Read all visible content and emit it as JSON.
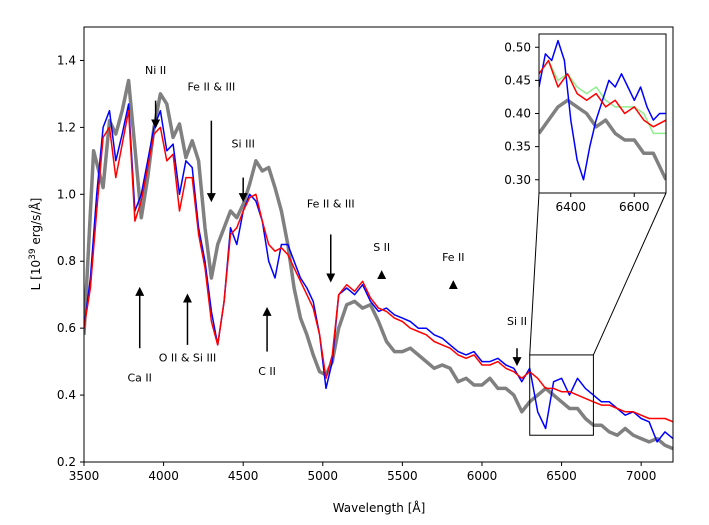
{
  "chart_data": {
    "type": "line",
    "xlabel": "Wavelength [Å]",
    "ylabel_prefix": "L [10",
    "ylabel_exp": "39",
    "ylabel_suffix": " erg/s/Å]",
    "xlim": [
      3500,
      7200
    ],
    "ylim": [
      0.2,
      1.5
    ],
    "xticks": [
      3500,
      4000,
      4500,
      5000,
      5500,
      6000,
      6500,
      7000
    ],
    "yticks": [
      0.2,
      0.4,
      0.6,
      0.8,
      1.0,
      1.2,
      1.4
    ],
    "xtick_labels": [
      "3500",
      "4000",
      "4500",
      "5000",
      "5500",
      "6000",
      "6500",
      "7000"
    ],
    "ytick_labels": [
      "0.2",
      "0.4",
      "0.6",
      "0.8",
      "1.0",
      "1.2",
      "1.4"
    ],
    "colors": {
      "gray": "#808080",
      "blue": "#0000ff",
      "red": "#ff0000",
      "green": "#90ee90"
    },
    "series": [
      {
        "name": "gray",
        "color": "#808080",
        "x": [
          3500,
          3560,
          3620,
          3660,
          3700,
          3740,
          3780,
          3820,
          3860,
          3900,
          3940,
          3980,
          4020,
          4060,
          4100,
          4140,
          4180,
          4220,
          4260,
          4300,
          4340,
          4380,
          4420,
          4460,
          4500,
          4540,
          4580,
          4620,
          4660,
          4700,
          4740,
          4780,
          4820,
          4860,
          4900,
          4940,
          4980,
          5020,
          5060,
          5100,
          5150,
          5200,
          5250,
          5300,
          5350,
          5400,
          5450,
          5500,
          5550,
          5600,
          5650,
          5700,
          5750,
          5800,
          5850,
          5900,
          5950,
          6000,
          6050,
          6100,
          6150,
          6200,
          6250,
          6300,
          6350,
          6400,
          6450,
          6500,
          6550,
          6600,
          6650,
          6700,
          6750,
          6800,
          6850,
          6900,
          6950,
          7000,
          7050,
          7100,
          7150,
          7200
        ],
        "y": [
          0.58,
          1.13,
          1.02,
          1.22,
          1.18,
          1.25,
          1.34,
          1.14,
          0.93,
          1.05,
          1.2,
          1.3,
          1.27,
          1.17,
          1.21,
          1.11,
          1.16,
          1.1,
          0.9,
          0.75,
          0.85,
          0.9,
          0.95,
          0.93,
          0.97,
          1.03,
          1.1,
          1.07,
          1.08,
          1.02,
          0.95,
          0.85,
          0.72,
          0.63,
          0.58,
          0.52,
          0.47,
          0.46,
          0.5,
          0.6,
          0.67,
          0.68,
          0.66,
          0.67,
          0.62,
          0.56,
          0.53,
          0.53,
          0.54,
          0.52,
          0.5,
          0.48,
          0.49,
          0.48,
          0.44,
          0.45,
          0.43,
          0.43,
          0.45,
          0.42,
          0.42,
          0.4,
          0.35,
          0.38,
          0.4,
          0.42,
          0.4,
          0.38,
          0.36,
          0.36,
          0.33,
          0.31,
          0.31,
          0.29,
          0.28,
          0.3,
          0.28,
          0.27,
          0.26,
          0.27,
          0.25,
          0.24
        ]
      },
      {
        "name": "blue",
        "color": "#0000ff",
        "x": [
          3500,
          3540,
          3580,
          3620,
          3660,
          3700,
          3740,
          3780,
          3820,
          3860,
          3900,
          3940,
          3980,
          4020,
          4060,
          4100,
          4140,
          4180,
          4220,
          4260,
          4300,
          4340,
          4380,
          4420,
          4460,
          4500,
          4540,
          4580,
          4620,
          4660,
          4700,
          4740,
          4780,
          4820,
          4860,
          4900,
          4940,
          4980,
          5020,
          5060,
          5100,
          5150,
          5200,
          5250,
          5300,
          5350,
          5400,
          5450,
          5500,
          5550,
          5600,
          5650,
          5700,
          5750,
          5800,
          5850,
          5900,
          5950,
          6000,
          6050,
          6100,
          6150,
          6200,
          6250,
          6300,
          6350,
          6400,
          6450,
          6500,
          6550,
          6600,
          6650,
          6700,
          6750,
          6800,
          6850,
          6900,
          6950,
          7000,
          7050,
          7100,
          7150,
          7200
        ],
        "y": [
          0.6,
          0.75,
          1.0,
          1.2,
          1.25,
          1.1,
          1.18,
          1.27,
          0.95,
          1.0,
          1.1,
          1.2,
          1.25,
          1.13,
          1.15,
          1.0,
          1.1,
          1.08,
          0.9,
          0.8,
          0.65,
          0.55,
          0.68,
          0.9,
          0.85,
          0.95,
          1.0,
          0.98,
          0.92,
          0.8,
          0.75,
          0.85,
          0.85,
          0.8,
          0.75,
          0.72,
          0.68,
          0.58,
          0.42,
          0.5,
          0.7,
          0.72,
          0.7,
          0.73,
          0.68,
          0.65,
          0.66,
          0.64,
          0.63,
          0.62,
          0.6,
          0.6,
          0.58,
          0.57,
          0.55,
          0.53,
          0.52,
          0.53,
          0.5,
          0.5,
          0.51,
          0.49,
          0.48,
          0.44,
          0.48,
          0.35,
          0.3,
          0.44,
          0.45,
          0.4,
          0.45,
          0.42,
          0.4,
          0.38,
          0.38,
          0.36,
          0.34,
          0.35,
          0.33,
          0.32,
          0.26,
          0.29,
          0.27
        ]
      },
      {
        "name": "red",
        "color": "#ff0000",
        "x": [
          3500,
          3540,
          3580,
          3620,
          3660,
          3700,
          3740,
          3780,
          3820,
          3860,
          3900,
          3940,
          3980,
          4020,
          4060,
          4100,
          4140,
          4180,
          4220,
          4260,
          4300,
          4340,
          4380,
          4420,
          4460,
          4500,
          4540,
          4580,
          4620,
          4660,
          4700,
          4740,
          4780,
          4820,
          4860,
          4900,
          4940,
          4980,
          5020,
          5060,
          5100,
          5150,
          5200,
          5250,
          5300,
          5350,
          5400,
          5450,
          5500,
          5550,
          5600,
          5650,
          5700,
          5750,
          5800,
          5850,
          5900,
          5950,
          6000,
          6050,
          6100,
          6150,
          6200,
          6250,
          6300,
          6350,
          6400,
          6450,
          6500,
          6550,
          6600,
          6650,
          6700,
          6750,
          6800,
          6850,
          6900,
          6950,
          7000,
          7050,
          7100,
          7150,
          7200
        ],
        "y": [
          0.6,
          0.72,
          0.95,
          1.17,
          1.2,
          1.05,
          1.15,
          1.25,
          0.92,
          0.98,
          1.08,
          1.18,
          1.2,
          1.1,
          1.12,
          0.95,
          1.05,
          1.05,
          0.88,
          0.78,
          0.62,
          0.55,
          0.68,
          0.88,
          0.9,
          0.95,
          0.99,
          1.0,
          0.92,
          0.85,
          0.83,
          0.84,
          0.82,
          0.78,
          0.74,
          0.7,
          0.66,
          0.58,
          0.45,
          0.52,
          0.7,
          0.73,
          0.71,
          0.74,
          0.69,
          0.66,
          0.65,
          0.63,
          0.62,
          0.6,
          0.59,
          0.58,
          0.56,
          0.55,
          0.54,
          0.52,
          0.51,
          0.52,
          0.49,
          0.49,
          0.5,
          0.48,
          0.47,
          0.45,
          0.47,
          0.45,
          0.42,
          0.42,
          0.41,
          0.41,
          0.4,
          0.39,
          0.38,
          0.37,
          0.37,
          0.36,
          0.35,
          0.35,
          0.34,
          0.33,
          0.33,
          0.33,
          0.32
        ]
      }
    ],
    "annotations": [
      {
        "label": "Ni II",
        "x": 3950,
        "y": 1.36,
        "arrow_from": 1.28,
        "arrow_to": 1.21
      },
      {
        "label": "Fe II & III",
        "x": 4300,
        "y": 1.31,
        "arrow_from": 1.22,
        "arrow_to": 0.99
      },
      {
        "label": "Si III",
        "x": 4500,
        "y": 1.14,
        "arrow_from": 1.05,
        "arrow_to": 0.99
      },
      {
        "label": "Fe II & III",
        "x": 5050,
        "y": 0.96,
        "arrow_from": 0.88,
        "arrow_to": 0.75
      },
      {
        "label": "S II",
        "x": 5370,
        "y": 0.83,
        "arrow_from": 0.75,
        "arrow_to": 0.76
      },
      {
        "label": "Fe II",
        "x": 5820,
        "y": 0.8,
        "arrow_from": 0.72,
        "arrow_to": 0.73
      },
      {
        "label": "Si II",
        "x": 6220,
        "y": 0.61,
        "arrow_from": 0.54,
        "arrow_to": 0.5
      },
      {
        "label": "Ca II",
        "x": 3850,
        "y": 0.44,
        "arrow_from": 0.54,
        "arrow_to": 0.71
      },
      {
        "label": "O II & Si III",
        "x": 4150,
        "y": 0.5,
        "arrow_from": 0.55,
        "arrow_to": 0.69
      },
      {
        "label": "C II",
        "x": 4650,
        "y": 0.46,
        "arrow_from": 0.53,
        "arrow_to": 0.65
      }
    ],
    "inset": {
      "xlim": [
        6300,
        6700
      ],
      "ylim": [
        0.28,
        0.52
      ],
      "xticks": [
        6400,
        6600
      ],
      "yticks": [
        0.3,
        0.35,
        0.4,
        0.45,
        0.5
      ],
      "xtick_labels": [
        "6400",
        "6600"
      ],
      "ytick_labels": [
        "0.30",
        "0.35",
        "0.40",
        "0.45",
        "0.50"
      ],
      "zoom_box": {
        "x": [
          6300,
          6700
        ],
        "y": [
          0.28,
          0.52
        ]
      },
      "series": [
        {
          "name": "gray",
          "color": "#808080",
          "x": [
            6300,
            6330,
            6360,
            6390,
            6420,
            6450,
            6480,
            6510,
            6540,
            6570,
            6600,
            6630,
            6660,
            6700
          ],
          "y": [
            0.37,
            0.39,
            0.41,
            0.42,
            0.41,
            0.4,
            0.38,
            0.39,
            0.37,
            0.36,
            0.36,
            0.34,
            0.34,
            0.3
          ]
        },
        {
          "name": "green",
          "color": "#90ee90",
          "x": [
            6300,
            6330,
            6360,
            6390,
            6420,
            6450,
            6480,
            6510,
            6540,
            6570,
            6600,
            6630,
            6660,
            6700
          ],
          "y": [
            0.46,
            0.48,
            0.45,
            0.46,
            0.44,
            0.43,
            0.44,
            0.42,
            0.41,
            0.41,
            0.41,
            0.4,
            0.37,
            0.37
          ]
        },
        {
          "name": "blue",
          "color": "#0000ff",
          "x": [
            6300,
            6320,
            6340,
            6360,
            6380,
            6400,
            6420,
            6440,
            6460,
            6480,
            6500,
            6520,
            6540,
            6560,
            6580,
            6600,
            6620,
            6640,
            6660,
            6680,
            6700
          ],
          "y": [
            0.44,
            0.49,
            0.48,
            0.51,
            0.48,
            0.39,
            0.33,
            0.3,
            0.35,
            0.39,
            0.42,
            0.45,
            0.44,
            0.46,
            0.44,
            0.42,
            0.44,
            0.41,
            0.39,
            0.4,
            0.4
          ]
        },
        {
          "name": "red",
          "color": "#ff0000",
          "x": [
            6300,
            6330,
            6360,
            6390,
            6420,
            6450,
            6480,
            6510,
            6540,
            6570,
            6600,
            6630,
            6660,
            6700
          ],
          "y": [
            0.46,
            0.48,
            0.44,
            0.46,
            0.43,
            0.42,
            0.43,
            0.41,
            0.42,
            0.4,
            0.41,
            0.39,
            0.38,
            0.39
          ]
        }
      ]
    }
  }
}
